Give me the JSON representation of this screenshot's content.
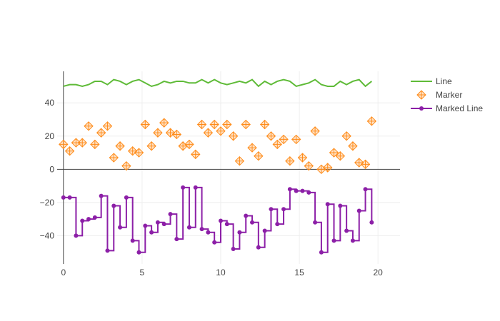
{
  "chart_data": {
    "type": "line",
    "title": "",
    "xlabel": "",
    "ylabel": "",
    "xlim": [
      -0.4,
      21.4
    ],
    "ylim": [
      -57,
      59
    ],
    "x_ticks": [
      0,
      5,
      10,
      15,
      20
    ],
    "y_ticks": [
      -40,
      -20,
      0,
      20,
      40
    ],
    "x_tick_labels": [
      "0",
      "5",
      "10",
      "15",
      "20"
    ],
    "y_tick_labels": [
      "−40",
      "−20",
      "0",
      "20",
      "40"
    ],
    "grid": true,
    "legend_position": "top-right",
    "x": [
      0,
      0.4,
      0.8,
      1.2,
      1.6,
      2,
      2.4,
      2.8,
      3.2,
      3.6,
      4,
      4.4,
      4.8,
      5.2,
      5.6,
      6,
      6.4,
      6.8,
      7.2,
      7.6,
      8,
      8.4,
      8.8,
      9.2,
      9.6,
      10,
      10.4,
      10.8,
      11.2,
      11.6,
      12,
      12.4,
      12.8,
      13.2,
      13.6,
      14,
      14.4,
      14.8,
      15.2,
      15.6,
      16,
      16.4,
      16.8,
      17.2,
      17.6,
      18,
      18.4,
      18.8,
      19.2,
      19.6,
      20
    ],
    "series": [
      {
        "name": "Line",
        "mode": "line",
        "color": "#5fbb38",
        "values": [
          50,
          51,
          51,
          50,
          51,
          53,
          53,
          51,
          54,
          53,
          51,
          53,
          54,
          52,
          50,
          51,
          53,
          52,
          53,
          53,
          52,
          52,
          54,
          52,
          54,
          52,
          51,
          52,
          53,
          52,
          54,
          50,
          53,
          51,
          53,
          54,
          53,
          50,
          51,
          52,
          54,
          51,
          50,
          50,
          53,
          51,
          53,
          54,
          50,
          53,
          null
        ]
      },
      {
        "name": "Marker",
        "mode": "markers",
        "color": "#ff8c1a",
        "values": [
          15,
          11,
          16,
          16,
          26,
          15,
          22,
          26,
          7,
          14,
          2,
          11,
          10,
          27,
          14,
          22,
          28,
          22,
          21,
          14,
          15,
          9,
          27,
          22,
          27,
          23,
          27,
          20,
          5,
          27,
          13,
          8,
          27,
          20,
          15,
          18,
          5,
          18,
          7,
          2,
          23,
          0,
          1,
          10,
          8,
          20,
          14,
          4,
          3,
          29,
          null
        ]
      },
      {
        "name": "Marked Line",
        "mode": "lines+markers",
        "line_shape": "hv",
        "color": "#8c1fa7",
        "values": [
          -17,
          -17,
          -40,
          -31,
          -30,
          -29,
          -16,
          -49,
          -22,
          -35,
          -17,
          -43,
          -50,
          -34,
          -38,
          -32,
          -33,
          -27,
          -42,
          -11,
          -35,
          -11,
          -36,
          -38,
          -44,
          -31,
          -33,
          -48,
          -38,
          -28,
          -32,
          -47,
          -37,
          -24,
          -33,
          -24,
          -12,
          -13,
          -13,
          -14,
          -32,
          -50,
          -21,
          -43,
          -22,
          -37,
          -43,
          -25,
          -12,
          -32,
          null
        ]
      }
    ]
  }
}
